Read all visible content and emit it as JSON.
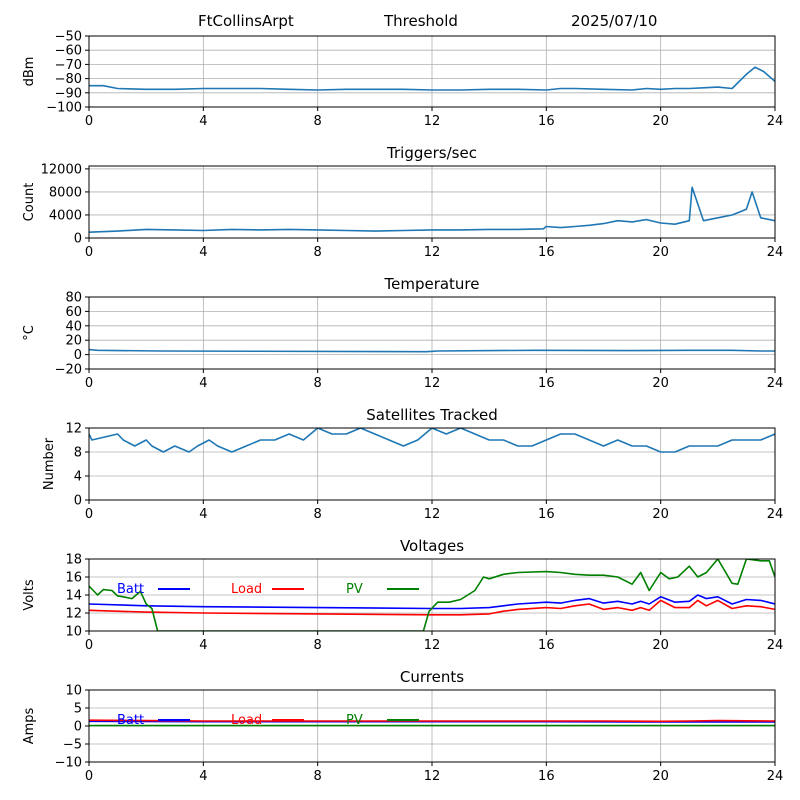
{
  "header": {
    "station": "FtCollinsArpt",
    "label": "Threshold",
    "date": "2025/07/10"
  },
  "colors": {
    "series_default": "#1f77b4",
    "batt": "#0000ff",
    "load": "#ff0000",
    "pv": "#008000",
    "grid": "#b0b0b0"
  },
  "chart_data": [
    {
      "id": "threshold",
      "type": "line",
      "title": "",
      "xlabel": "",
      "ylabel": "dBm",
      "xlim": [
        0,
        24
      ],
      "ylim": [
        -100,
        -50
      ],
      "xticks": [
        0,
        4,
        8,
        12,
        16,
        20,
        24
      ],
      "yticks": [
        -100,
        -90,
        -80,
        -70,
        -60,
        -50
      ],
      "ytick_labels": [
        "−100",
        "−90",
        "−80",
        "−70",
        "−60",
        "−50"
      ],
      "grid": true,
      "series": [
        {
          "color": "#1f77b4",
          "x": [
            0,
            0.5,
            1,
            2,
            3,
            4,
            5,
            6,
            7,
            8,
            9,
            10,
            11,
            12,
            13,
            14,
            15,
            16,
            16.5,
            17,
            18,
            19,
            19.5,
            20,
            20.5,
            21,
            21.5,
            22,
            22.5,
            23,
            23.3,
            23.6,
            24
          ],
          "y": [
            -85,
            -85,
            -87,
            -87.5,
            -87.5,
            -87,
            -87,
            -87,
            -87.5,
            -88,
            -87.5,
            -87.5,
            -87.5,
            -88,
            -88,
            -87.5,
            -87.5,
            -88,
            -87,
            -87,
            -87.5,
            -88,
            -87,
            -87.5,
            -87,
            -87,
            -86.5,
            -86,
            -87,
            -77,
            -72,
            -75,
            -82
          ]
        }
      ]
    },
    {
      "id": "triggers",
      "type": "line",
      "title": "Triggers/sec",
      "xlabel": "",
      "ylabel": "Count",
      "xlim": [
        0,
        24
      ],
      "ylim": [
        0,
        12500
      ],
      "xticks": [
        0,
        4,
        8,
        12,
        16,
        20,
        24
      ],
      "yticks": [
        0,
        4000,
        8000,
        12000
      ],
      "ytick_labels": [
        "0",
        "4000",
        "8000",
        "12000"
      ],
      "grid": true,
      "series": [
        {
          "color": "#1f77b4",
          "x": [
            0,
            1,
            2,
            3,
            4,
            5,
            6,
            7,
            8,
            9,
            10,
            11,
            12,
            13,
            14,
            15,
            15.9,
            16,
            16.5,
            17,
            17.5,
            18,
            18.5,
            19,
            19.5,
            20,
            20.5,
            21,
            21.1,
            21.5,
            22,
            22.5,
            23,
            23.2,
            23.5,
            24
          ],
          "y": [
            1000,
            1200,
            1500,
            1400,
            1300,
            1500,
            1400,
            1500,
            1400,
            1300,
            1200,
            1300,
            1400,
            1400,
            1500,
            1500,
            1600,
            2000,
            1800,
            2000,
            2200,
            2500,
            3000,
            2800,
            3200,
            2600,
            2400,
            3000,
            8800,
            3000,
            3500,
            4000,
            5000,
            8000,
            3500,
            3000
          ]
        }
      ]
    },
    {
      "id": "temperature",
      "type": "line",
      "title": "Temperature",
      "xlabel": "",
      "ylabel": "°C",
      "xlim": [
        0,
        24
      ],
      "ylim": [
        -20,
        80
      ],
      "xticks": [
        0,
        4,
        8,
        12,
        16,
        20,
        24
      ],
      "yticks": [
        -20,
        0,
        20,
        40,
        60,
        80
      ],
      "ytick_labels": [
        "−20",
        "0",
        "20",
        "40",
        "60",
        "80"
      ],
      "grid": true,
      "series": [
        {
          "color": "#1f77b4",
          "x": [
            0,
            0.3,
            2.5,
            11.8,
            12.2,
            15.6,
            18.8,
            21,
            22.5,
            23.5,
            24
          ],
          "y": [
            7,
            6,
            5,
            4,
            5,
            6,
            5.5,
            6,
            6,
            5,
            5
          ]
        }
      ]
    },
    {
      "id": "satellites",
      "type": "line",
      "title": "Satellites Tracked",
      "xlabel": "",
      "ylabel": "Number",
      "xlim": [
        0,
        24
      ],
      "ylim": [
        0,
        12
      ],
      "xticks": [
        0,
        4,
        8,
        12,
        16,
        20,
        24
      ],
      "yticks": [
        0,
        4,
        8,
        12
      ],
      "ytick_labels": [
        "0",
        "4",
        "8",
        "12"
      ],
      "grid": true,
      "series": [
        {
          "color": "#1f77b4",
          "x": [
            0,
            0.1,
            1,
            1.2,
            1.6,
            2,
            2.2,
            2.6,
            3,
            3.5,
            3.8,
            4.2,
            4.5,
            5,
            5.5,
            6,
            6.5,
            7,
            7.5,
            8,
            8.5,
            9,
            9.5,
            10,
            10.5,
            11,
            11.5,
            12,
            12.5,
            13,
            13.5,
            14,
            14.5,
            15,
            15.5,
            16,
            16.5,
            17,
            17.5,
            18,
            18.5,
            19,
            19.5,
            20,
            20.5,
            21,
            21.5,
            22,
            22.5,
            23,
            23.5,
            24
          ],
          "y": [
            11,
            10,
            11,
            10,
            9,
            10,
            9,
            8,
            9,
            8,
            9,
            10,
            9,
            8,
            9,
            10,
            10,
            11,
            10,
            12,
            11,
            11,
            12,
            11,
            10,
            9,
            10,
            12,
            11,
            12,
            11,
            10,
            10,
            9,
            9,
            10,
            11,
            11,
            10,
            9,
            10,
            9,
            9,
            8,
            8,
            9,
            9,
            9,
            10,
            10,
            10,
            11
          ]
        }
      ]
    },
    {
      "id": "voltages",
      "type": "line",
      "title": "Voltages",
      "xlabel": "",
      "ylabel": "Volts",
      "xlim": [
        0,
        24
      ],
      "ylim": [
        10,
        18
      ],
      "xticks": [
        0,
        4,
        8,
        12,
        16,
        20,
        24
      ],
      "yticks": [
        10,
        12,
        14,
        16,
        18
      ],
      "ytick_labels": [
        "10",
        "12",
        "14",
        "16",
        "18"
      ],
      "grid": true,
      "legend": "top-left, inline",
      "series": [
        {
          "name": "Batt",
          "color": "#0000ff",
          "x": [
            0,
            2,
            4,
            8,
            12,
            13,
            14,
            14.5,
            15,
            16,
            16.5,
            17,
            17.5,
            18,
            18.5,
            19,
            19.3,
            19.6,
            20,
            20.5,
            21,
            21.3,
            21.6,
            22,
            22.5,
            23,
            23.5,
            24
          ],
          "y": [
            13.0,
            12.8,
            12.7,
            12.6,
            12.5,
            12.5,
            12.6,
            12.8,
            13.0,
            13.2,
            13.1,
            13.4,
            13.6,
            13.1,
            13.3,
            13.0,
            13.3,
            13.0,
            13.8,
            13.2,
            13.3,
            14.0,
            13.6,
            13.8,
            13.0,
            13.5,
            13.4,
            13.0
          ]
        },
        {
          "name": "Load",
          "color": "#ff0000",
          "x": [
            0,
            2,
            4,
            8,
            12,
            13,
            14,
            14.5,
            15,
            16,
            16.5,
            17,
            17.5,
            18,
            18.5,
            19,
            19.3,
            19.6,
            20,
            20.5,
            21,
            21.3,
            21.6,
            22,
            22.5,
            23,
            23.5,
            24
          ],
          "y": [
            12.3,
            12.1,
            12.0,
            11.9,
            11.8,
            11.8,
            11.9,
            12.2,
            12.4,
            12.6,
            12.5,
            12.8,
            13.0,
            12.4,
            12.6,
            12.3,
            12.6,
            12.3,
            13.4,
            12.6,
            12.6,
            13.4,
            12.8,
            13.4,
            12.5,
            12.8,
            12.7,
            12.4
          ]
        },
        {
          "name": "PV",
          "color": "#008000",
          "x": [
            0,
            0.3,
            0.5,
            0.8,
            1,
            1.2,
            1.5,
            1.8,
            2,
            2.2,
            2.4,
            11.7,
            11.9,
            12.2,
            12.6,
            13,
            13.5,
            13.8,
            14,
            14.5,
            15,
            16,
            16.5,
            17,
            17.5,
            18,
            18.5,
            19,
            19.3,
            19.6,
            20,
            20.3,
            20.6,
            21,
            21.3,
            21.6,
            22,
            22.5,
            22.7,
            23,
            23.5,
            23.8,
            24
          ],
          "y": [
            15.0,
            14.0,
            14.6,
            14.5,
            13.9,
            13.8,
            13.6,
            14.4,
            13.0,
            12.5,
            10.0,
            10.0,
            12.2,
            13.2,
            13.2,
            13.5,
            14.5,
            16.0,
            15.8,
            16.3,
            16.5,
            16.6,
            16.5,
            16.3,
            16.2,
            16.2,
            16.0,
            15.2,
            16.5,
            14.5,
            16.5,
            15.8,
            16.0,
            17.2,
            16.0,
            16.5,
            18.0,
            15.3,
            15.2,
            18.0,
            17.8,
            17.8,
            16.0
          ]
        }
      ]
    },
    {
      "id": "currents",
      "type": "line",
      "title": "Currents",
      "xlabel": "",
      "ylabel": "Amps",
      "xlim": [
        0,
        24
      ],
      "ylim": [
        -10,
        10
      ],
      "xticks": [
        0,
        4,
        8,
        12,
        16,
        20,
        24
      ],
      "yticks": [
        -10,
        -5,
        0,
        5,
        10
      ],
      "ytick_labels": [
        "−10",
        "−5",
        "0",
        "5",
        "10"
      ],
      "grid": true,
      "legend": "top-left, inline",
      "series": [
        {
          "name": "Batt",
          "color": "#0000ff",
          "x": [
            0,
            4,
            8,
            12,
            16,
            20,
            24
          ],
          "y": [
            1.3,
            1.2,
            1.2,
            1.2,
            1.2,
            1.1,
            1.1
          ]
        },
        {
          "name": "Load",
          "color": "#ff0000",
          "x": [
            0,
            2,
            4,
            8,
            12,
            16,
            18,
            20,
            21,
            22,
            24
          ],
          "y": [
            1.6,
            1.5,
            1.4,
            1.4,
            1.4,
            1.4,
            1.4,
            1.3,
            1.4,
            1.5,
            1.4
          ]
        },
        {
          "name": "PV",
          "color": "#008000",
          "x": [
            0,
            4,
            8,
            12,
            16,
            20,
            24
          ],
          "y": [
            0.1,
            0.1,
            0.1,
            0.1,
            0.1,
            0.1,
            0.1
          ]
        }
      ]
    }
  ]
}
